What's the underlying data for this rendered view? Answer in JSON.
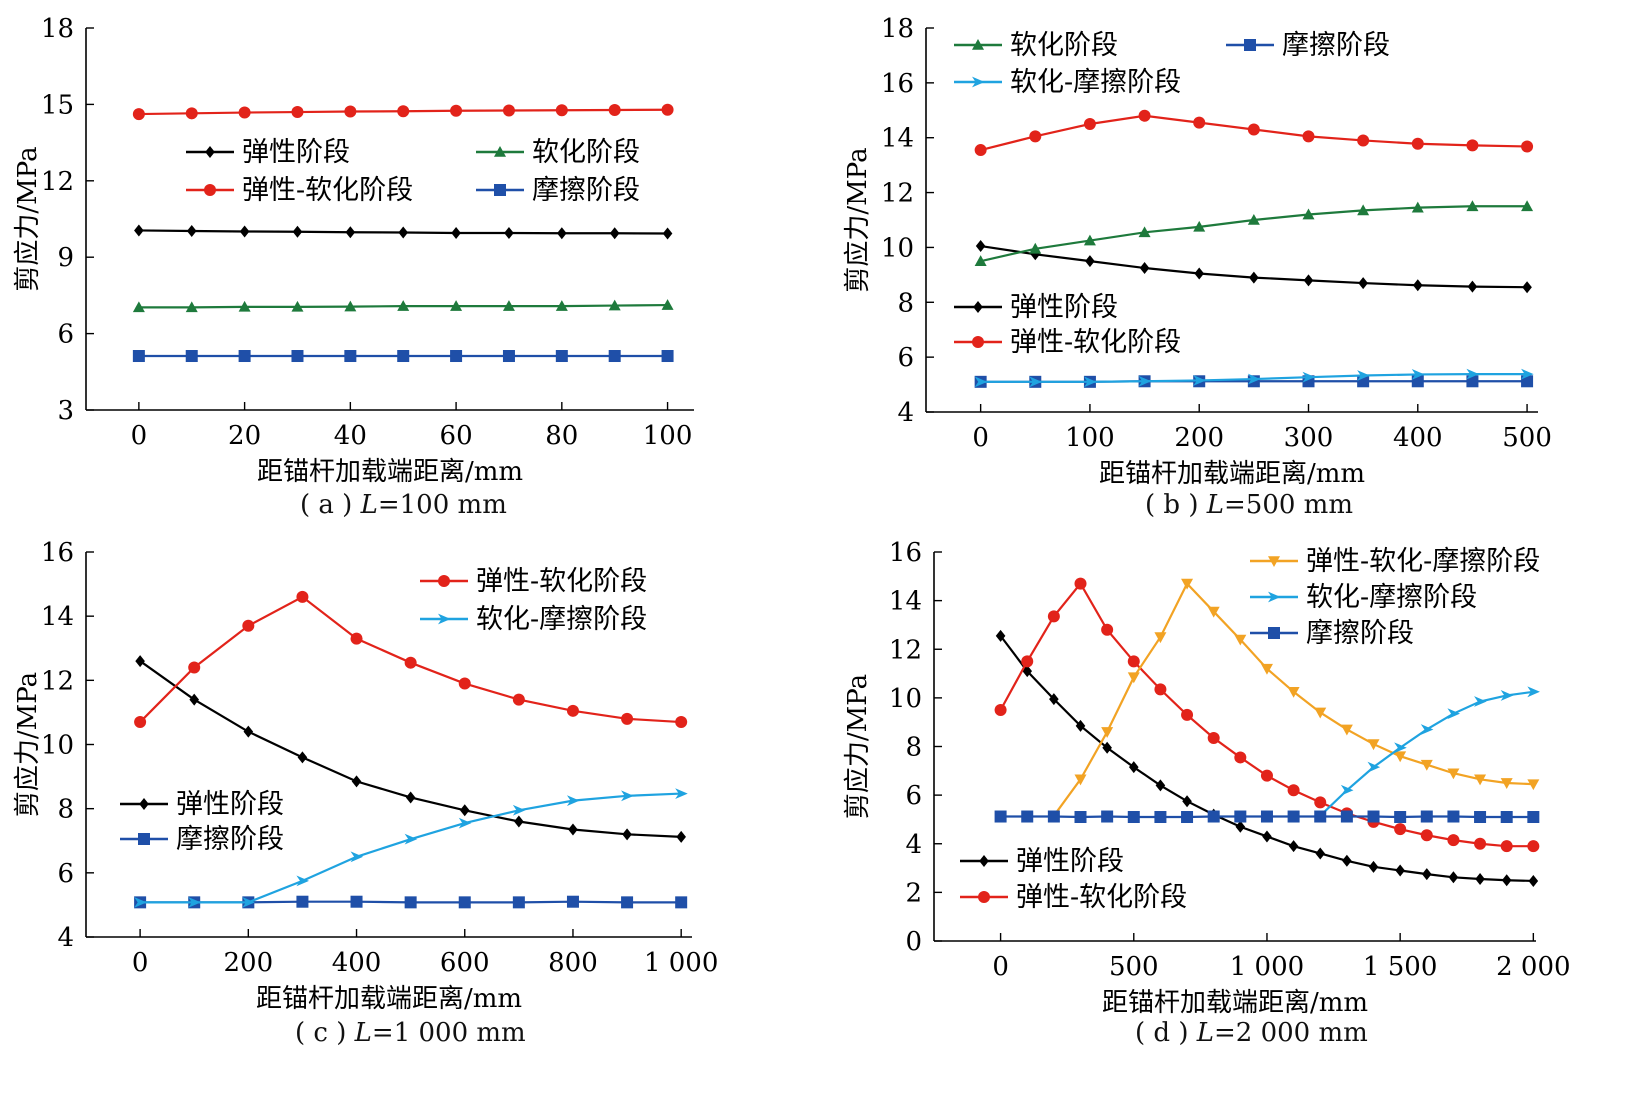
{
  "chart_data": [
    {
      "type": "line",
      "caption": {
        "prefix": "( a ) ",
        "var": "L",
        "rest": "=100 mm"
      },
      "xlabel": "距锚杆加载端距离/mm",
      "ylabel": "剪应力/MPa",
      "xlim": [
        -10,
        105
      ],
      "ylim": [
        3,
        18
      ],
      "xticks": [
        0,
        20,
        40,
        60,
        80,
        100
      ],
      "xtick_labels": [
        "0",
        "20",
        "40",
        "60",
        "80",
        "100"
      ],
      "yticks": [
        3,
        6,
        9,
        12,
        15,
        18
      ],
      "ytick_labels": [
        "3",
        "6",
        "9",
        "12",
        "15",
        "18"
      ],
      "legend": [
        {
          "label": "弹性阶段",
          "series": 0
        },
        {
          "label": "软化阶段",
          "series": 1
        },
        {
          "label": "弹性-软化阶段",
          "series": 2
        },
        {
          "label": "摩擦阶段",
          "series": 3
        }
      ],
      "series": [
        {
          "name": "弹性阶段",
          "color": "#000000",
          "marker": "diamond",
          "x": [
            0,
            10,
            20,
            30,
            40,
            50,
            60,
            70,
            80,
            90,
            100
          ],
          "y": [
            10.05,
            10.03,
            10.01,
            10.0,
            9.98,
            9.97,
            9.95,
            9.95,
            9.94,
            9.94,
            9.93
          ]
        },
        {
          "name": "软化阶段",
          "color": "#1e7a3c",
          "marker": "triangle",
          "x": [
            0,
            10,
            20,
            30,
            40,
            50,
            60,
            70,
            80,
            90,
            100
          ],
          "y": [
            7.03,
            7.03,
            7.05,
            7.05,
            7.06,
            7.08,
            7.08,
            7.08,
            7.08,
            7.1,
            7.12
          ]
        },
        {
          "name": "弹性-软化阶段",
          "color": "#e2231a",
          "marker": "circle",
          "x": [
            0,
            10,
            20,
            30,
            40,
            50,
            60,
            70,
            80,
            90,
            100
          ],
          "y": [
            14.62,
            14.65,
            14.68,
            14.7,
            14.72,
            14.73,
            14.75,
            14.76,
            14.77,
            14.78,
            14.79
          ]
        },
        {
          "name": "摩擦阶段",
          "color": "#1f4fa8",
          "marker": "square",
          "x": [
            0,
            10,
            20,
            30,
            40,
            50,
            60,
            70,
            80,
            90,
            100
          ],
          "y": [
            5.12,
            5.12,
            5.12,
            5.12,
            5.12,
            5.12,
            5.12,
            5.12,
            5.12,
            5.12,
            5.12
          ]
        }
      ]
    },
    {
      "type": "line",
      "caption": {
        "prefix": "( b ) ",
        "var": "L",
        "rest": "=500 mm"
      },
      "xlabel": "距锚杆加载端距离/mm",
      "ylabel": "剪应力/MPa",
      "xlim": [
        -50,
        510
      ],
      "ylim": [
        4,
        18
      ],
      "xticks": [
        0,
        100,
        200,
        300,
        400,
        500
      ],
      "xtick_labels": [
        "0",
        "100",
        "200",
        "300",
        "400",
        "500"
      ],
      "yticks": [
        4,
        6,
        8,
        10,
        12,
        14,
        16,
        18
      ],
      "ytick_labels": [
        "4",
        "6",
        "8",
        "10",
        "12",
        "14",
        "16",
        "18"
      ],
      "legend": [
        {
          "label": "软化阶段",
          "series": 1
        },
        {
          "label": "摩擦阶段",
          "series": 3
        },
        {
          "label": "软化-摩擦阶段",
          "series": 4
        },
        {
          "label": "弹性阶段",
          "series": 0
        },
        {
          "label": "弹性-软化阶段",
          "series": 2
        }
      ],
      "series": [
        {
          "name": "弹性阶段",
          "color": "#000000",
          "marker": "diamond",
          "x": [
            0,
            50,
            100,
            150,
            200,
            250,
            300,
            350,
            400,
            450,
            500
          ],
          "y": [
            10.05,
            9.75,
            9.5,
            9.25,
            9.05,
            8.9,
            8.8,
            8.7,
            8.62,
            8.57,
            8.55
          ]
        },
        {
          "name": "软化阶段",
          "color": "#1e7a3c",
          "marker": "triangle",
          "x": [
            0,
            50,
            100,
            150,
            200,
            250,
            300,
            350,
            400,
            450,
            500
          ],
          "y": [
            9.5,
            9.95,
            10.25,
            10.55,
            10.75,
            11.0,
            11.2,
            11.35,
            11.45,
            11.5,
            11.5
          ]
        },
        {
          "name": "弹性-软化阶段",
          "color": "#e2231a",
          "marker": "circle",
          "x": [
            0,
            50,
            100,
            150,
            200,
            250,
            300,
            350,
            400,
            450,
            500
          ],
          "y": [
            13.55,
            14.05,
            14.5,
            14.8,
            14.55,
            14.3,
            14.05,
            13.9,
            13.78,
            13.72,
            13.68
          ]
        },
        {
          "name": "摩擦阶段",
          "color": "#1f4fa8",
          "marker": "square",
          "x": [
            0,
            50,
            100,
            150,
            200,
            250,
            300,
            350,
            400,
            450,
            500
          ],
          "y": [
            5.1,
            5.1,
            5.1,
            5.12,
            5.12,
            5.12,
            5.12,
            5.12,
            5.12,
            5.12,
            5.12
          ]
        },
        {
          "name": "软化-摩擦阶段",
          "color": "#1fa3e0",
          "marker": "arrow",
          "x": [
            0,
            50,
            100,
            150,
            200,
            250,
            300,
            350,
            400,
            450,
            500
          ],
          "y": [
            5.1,
            5.1,
            5.1,
            5.12,
            5.15,
            5.2,
            5.27,
            5.33,
            5.37,
            5.38,
            5.38
          ]
        }
      ]
    },
    {
      "type": "line",
      "caption": {
        "prefix": "( c ) ",
        "var": "L",
        "rest": "=1 000 mm"
      },
      "xlabel": "距锚杆加载端距离/mm",
      "ylabel": "剪应力/MPa",
      "xlim": [
        -100,
        1020
      ],
      "ylim": [
        4,
        16
      ],
      "xticks": [
        0,
        200,
        400,
        600,
        800,
        1000
      ],
      "xtick_labels": [
        "0",
        "200",
        "400",
        "600",
        "800",
        "1 000"
      ],
      "yticks": [
        4,
        6,
        8,
        10,
        12,
        14,
        16
      ],
      "ytick_labels": [
        "4",
        "6",
        "8",
        "10",
        "12",
        "14",
        "16"
      ],
      "legend": [
        {
          "label": "弹性-软化阶段",
          "series": 1
        },
        {
          "label": "软化-摩擦阶段",
          "series": 3
        },
        {
          "label": "弹性阶段",
          "series": 0
        },
        {
          "label": "摩擦阶段",
          "series": 2
        }
      ],
      "series": [
        {
          "name": "弹性阶段",
          "color": "#000000",
          "marker": "diamond",
          "x": [
            0,
            100,
            200,
            300,
            400,
            500,
            600,
            700,
            800,
            900,
            1000
          ],
          "y": [
            12.6,
            11.4,
            10.4,
            9.6,
            8.85,
            8.35,
            7.95,
            7.6,
            7.35,
            7.2,
            7.12
          ]
        },
        {
          "name": "弹性-软化阶段",
          "color": "#e2231a",
          "marker": "circle",
          "x": [
            0,
            100,
            200,
            300,
            400,
            500,
            600,
            700,
            800,
            900,
            1000
          ],
          "y": [
            10.7,
            12.4,
            13.7,
            14.6,
            13.3,
            12.55,
            11.9,
            11.4,
            11.05,
            10.8,
            10.7
          ]
        },
        {
          "name": "摩擦阶段",
          "color": "#1f4fa8",
          "marker": "square",
          "x": [
            0,
            100,
            200,
            300,
            400,
            500,
            600,
            700,
            800,
            900,
            1000
          ],
          "y": [
            5.08,
            5.08,
            5.08,
            5.1,
            5.1,
            5.08,
            5.08,
            5.08,
            5.1,
            5.08,
            5.08
          ]
        },
        {
          "name": "软化-摩擦阶段",
          "color": "#1fa3e0",
          "marker": "arrow",
          "x": [
            0,
            100,
            200,
            300,
            400,
            500,
            600,
            700,
            800,
            900,
            1000
          ],
          "y": [
            5.08,
            5.08,
            5.08,
            5.75,
            6.5,
            7.05,
            7.55,
            7.95,
            8.25,
            8.4,
            8.47
          ]
        }
      ]
    },
    {
      "type": "line",
      "caption": {
        "prefix": "( d ) ",
        "var": "L",
        "rest": "=2 000 mm"
      },
      "xlabel": "距锚杆加载端距离/mm",
      "ylabel": "剪应力/MPa",
      "xlim": [
        -250,
        2010
      ],
      "ylim": [
        0,
        16
      ],
      "xticks": [
        0,
        500,
        1000,
        1500,
        2000
      ],
      "xtick_labels": [
        "0",
        "500",
        "1 000",
        "1 500",
        "2 000"
      ],
      "yticks": [
        0,
        2,
        4,
        6,
        8,
        10,
        12,
        14,
        16
      ],
      "ytick_labels": [
        "0",
        "2",
        "4",
        "6",
        "8",
        "10",
        "12",
        "14",
        "16"
      ],
      "legend": [
        {
          "label": "弹性-软化-摩擦阶段",
          "series": 2
        },
        {
          "label": "软化-摩擦阶段",
          "series": 3
        },
        {
          "label": "摩擦阶段",
          "series": 4
        },
        {
          "label": "弹性阶段",
          "series": 0
        },
        {
          "label": "弹性-软化阶段",
          "series": 1
        }
      ],
      "series": [
        {
          "name": "弹性阶段",
          "color": "#000000",
          "marker": "diamond",
          "x": [
            0,
            100,
            200,
            300,
            400,
            500,
            600,
            700,
            800,
            900,
            1000,
            1100,
            1200,
            1300,
            1400,
            1500,
            1600,
            1700,
            1800,
            1900,
            2000
          ],
          "y": [
            12.55,
            11.1,
            9.95,
            8.85,
            7.95,
            7.15,
            6.4,
            5.75,
            5.2,
            4.7,
            4.3,
            3.9,
            3.6,
            3.3,
            3.05,
            2.9,
            2.75,
            2.62,
            2.55,
            2.5,
            2.47
          ]
        },
        {
          "name": "弹性-软化阶段",
          "color": "#e2231a",
          "marker": "circle",
          "x": [
            0,
            100,
            200,
            300,
            400,
            500,
            600,
            700,
            800,
            900,
            1000,
            1100,
            1200,
            1300,
            1400,
            1500,
            1600,
            1700,
            1800,
            1900,
            2000
          ],
          "y": [
            9.5,
            11.5,
            13.35,
            14.7,
            12.8,
            11.5,
            10.35,
            9.3,
            8.35,
            7.55,
            6.8,
            6.2,
            5.7,
            5.25,
            4.9,
            4.6,
            4.35,
            4.15,
            4.0,
            3.9,
            3.9
          ]
        },
        {
          "name": "弹性-软化-摩擦阶段",
          "color": "#f2a324",
          "marker": "triangle-down",
          "x": [
            200,
            300,
            400,
            500,
            600,
            700,
            800,
            900,
            1000,
            1100,
            1200,
            1300,
            1400,
            1500,
            1600,
            1700,
            1800,
            1900,
            2000
          ],
          "y": [
            5.15,
            6.65,
            8.6,
            10.85,
            12.5,
            14.7,
            13.55,
            12.4,
            11.2,
            10.25,
            9.4,
            8.7,
            8.1,
            7.6,
            7.25,
            6.9,
            6.65,
            6.5,
            6.45
          ]
        },
        {
          "name": "软化-摩擦阶段",
          "color": "#1fa3e0",
          "marker": "arrow",
          "x": [
            1200,
            1300,
            1400,
            1500,
            1600,
            1700,
            1800,
            1900,
            2000
          ],
          "y": [
            5.15,
            6.2,
            7.15,
            7.95,
            8.7,
            9.35,
            9.85,
            10.1,
            10.25
          ]
        },
        {
          "name": "摩擦阶段",
          "color": "#1f4fa8",
          "marker": "square",
          "x": [
            0,
            100,
            200,
            300,
            400,
            500,
            600,
            700,
            800,
            900,
            1000,
            1100,
            1200,
            1300,
            1400,
            1500,
            1600,
            1700,
            1800,
            1900,
            2000
          ],
          "y": [
            5.12,
            5.12,
            5.12,
            5.1,
            5.12,
            5.1,
            5.1,
            5.1,
            5.12,
            5.12,
            5.12,
            5.12,
            5.12,
            5.12,
            5.12,
            5.1,
            5.12,
            5.12,
            5.1,
            5.1,
            5.1
          ]
        }
      ]
    }
  ]
}
